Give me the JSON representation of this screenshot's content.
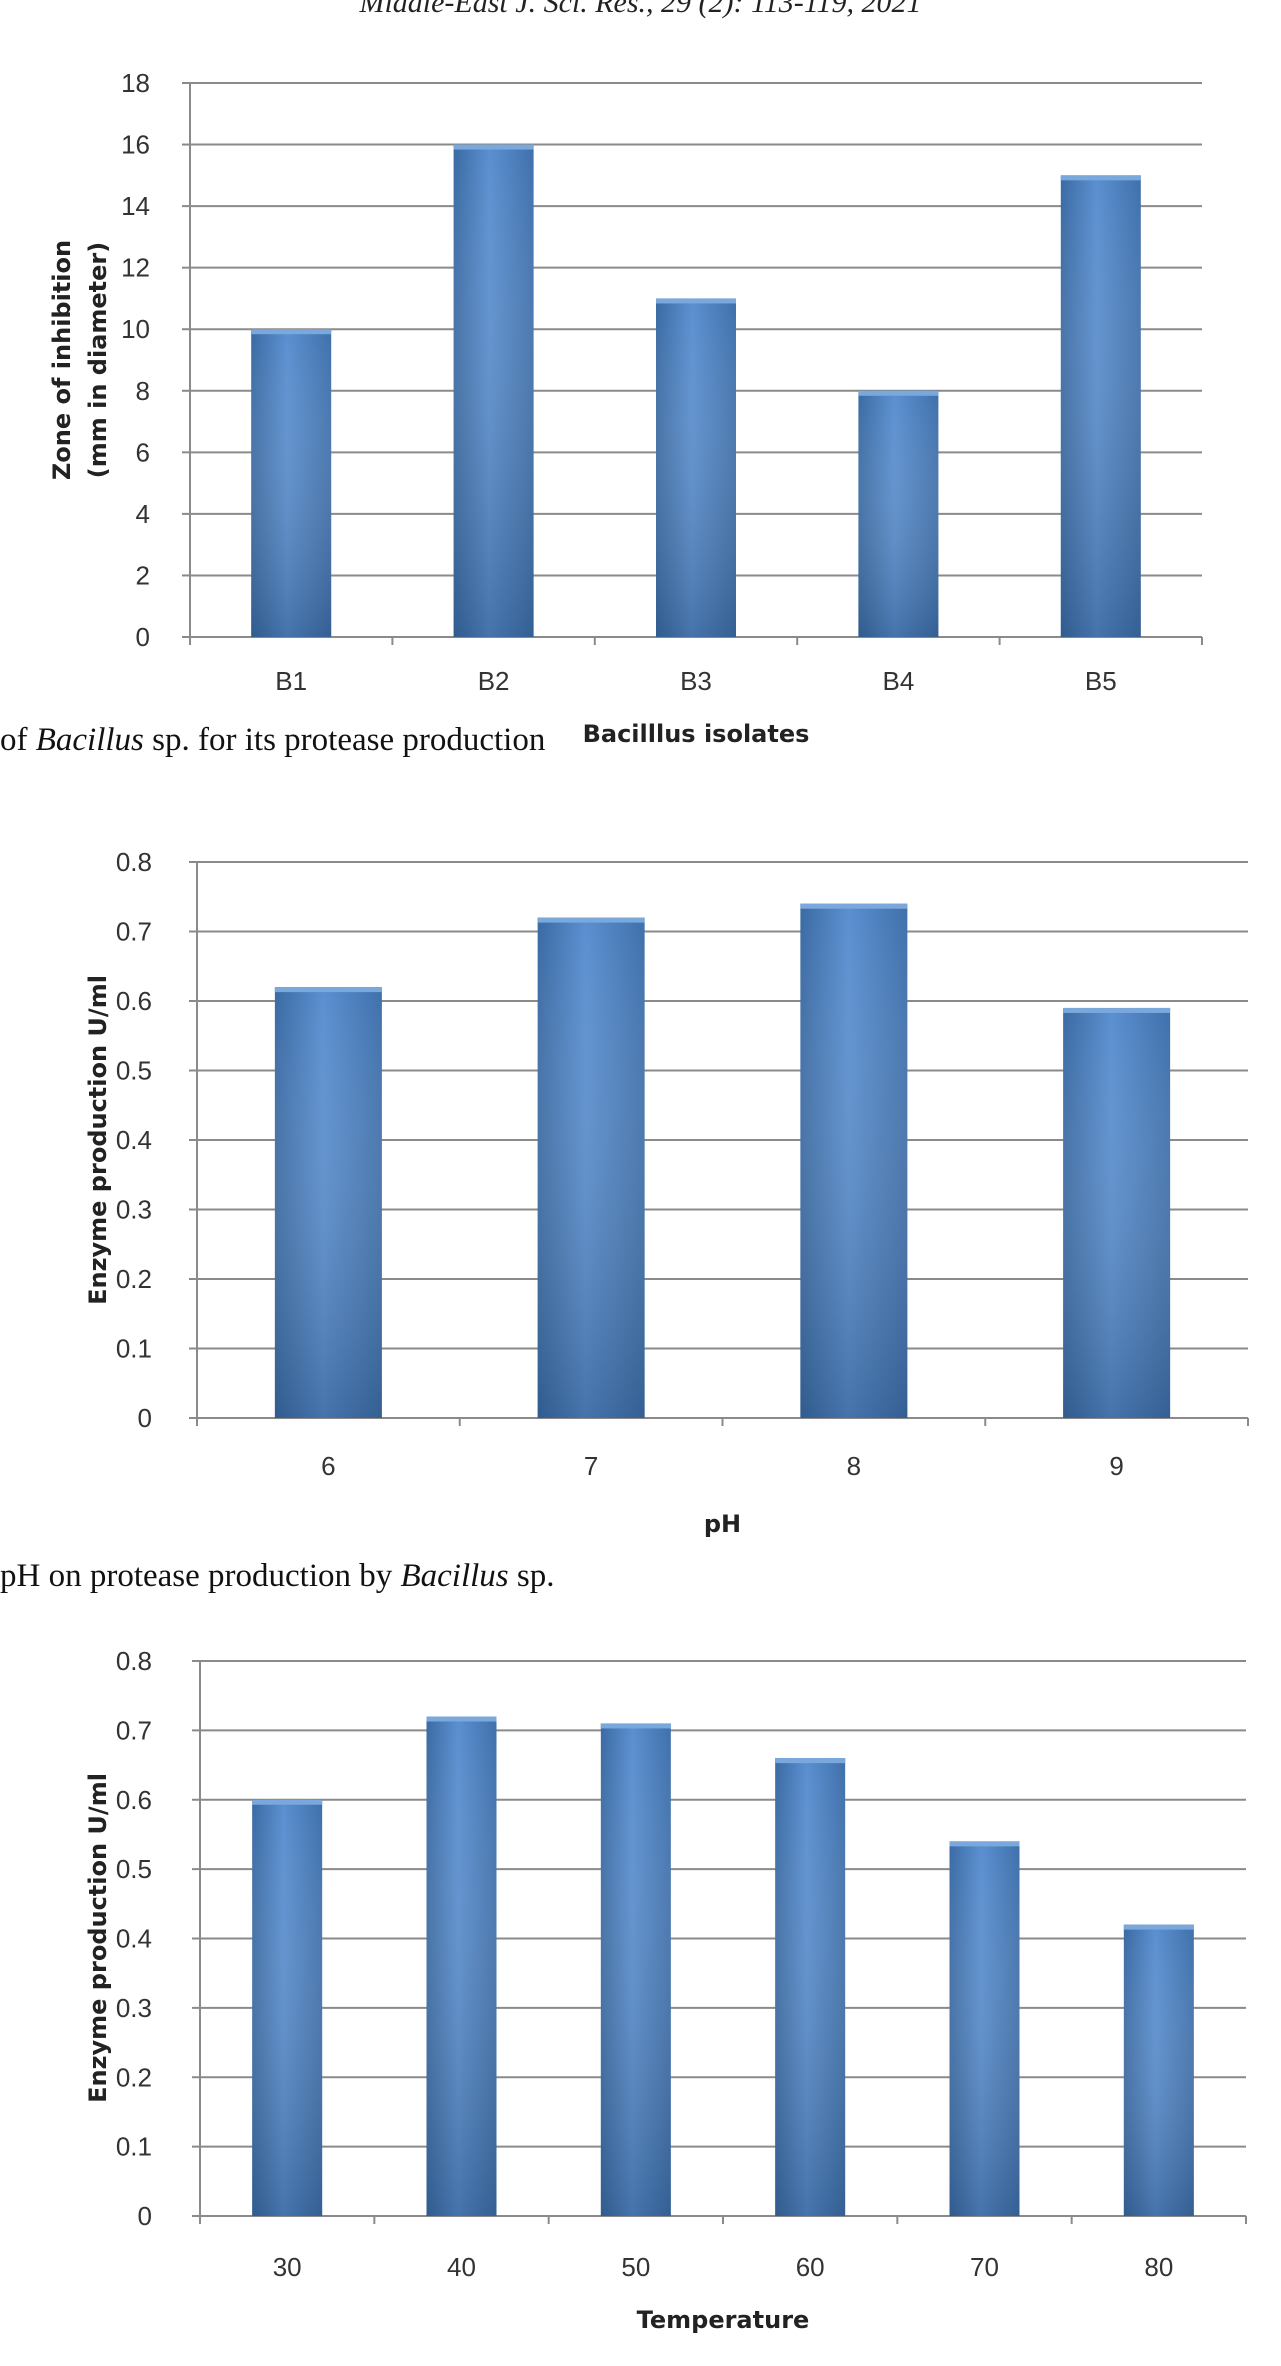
{
  "header": "Middle-East J. Sci. Res., 29 (2): 113-119, 2021",
  "captions": [
    {
      "pre": "of ",
      "italic": "Bacillus",
      "post": " sp. for its protease production"
    },
    {
      "pre": "pH on protease production by ",
      "italic": "Bacillus",
      "post": " sp."
    }
  ],
  "chart_data": [
    {
      "type": "bar",
      "categories": [
        "B1",
        "B2",
        "B3",
        "B4",
        "B5"
      ],
      "values": [
        10,
        16,
        11,
        8,
        15
      ],
      "ylim": [
        0,
        18
      ],
      "yticks": [
        "0",
        "2",
        "4",
        "6",
        "8",
        "10",
        "12",
        "14",
        "16",
        "18"
      ],
      "ylabel": [
        "Zone of inhibition",
        "(mm in diameter)"
      ],
      "xlabel": "Bacilllus isolates",
      "grid": true,
      "color": "#4a7fbd"
    },
    {
      "type": "bar",
      "categories": [
        "6",
        "7",
        "8",
        "9"
      ],
      "values": [
        0.62,
        0.72,
        0.74,
        0.59
      ],
      "ylim": [
        0,
        0.8
      ],
      "yticks": [
        "0",
        "0.1",
        "0.2",
        "0.3",
        "0.4",
        "0.5",
        "0.6",
        "0.7",
        "0.8"
      ],
      "ylabel": [
        "Enzyme production U/ml"
      ],
      "xlabel": "pH",
      "grid": true,
      "color": "#4a7fbd"
    },
    {
      "type": "bar",
      "categories": [
        "30",
        "40",
        "50",
        "60",
        "70",
        "80"
      ],
      "values": [
        0.6,
        0.72,
        0.71,
        0.66,
        0.54,
        0.42
      ],
      "ylim": [
        0,
        0.8
      ],
      "yticks": [
        "0",
        "0.1",
        "0.2",
        "0.3",
        "0.4",
        "0.5",
        "0.6",
        "0.7",
        "0.8"
      ],
      "ylabel": [
        "Enzyme production U/ml"
      ],
      "xlabel": "Temperature",
      "grid": true,
      "color": "#4a7fbd"
    }
  ]
}
